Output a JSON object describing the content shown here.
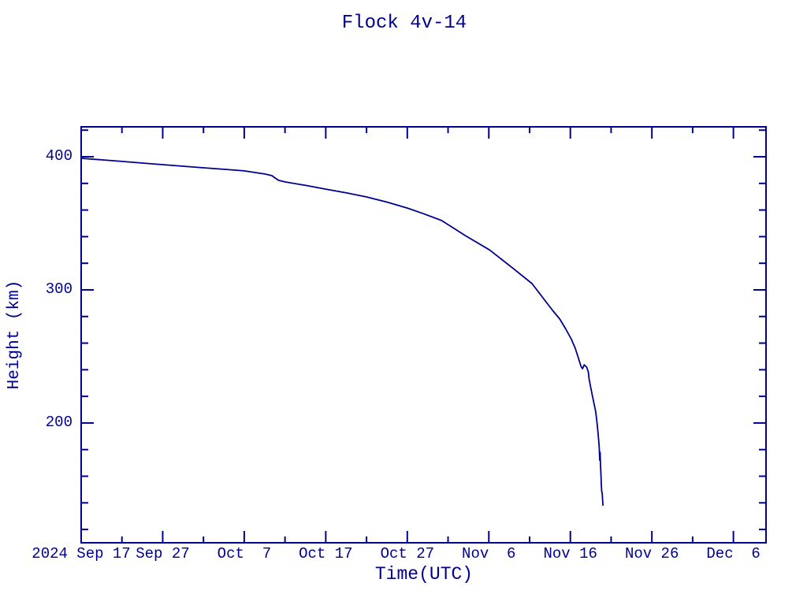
{
  "colors": {
    "accent": "#000090",
    "background": "#ffffff"
  },
  "chart_data": {
    "type": "line",
    "title": "Flock 4v-14",
    "xlabel": "Time(UTC)",
    "ylabel": "Height (km)",
    "x_unit": "days since 2024 Sep 17 (UTC)",
    "xlim": [
      0,
      84
    ],
    "ylim": [
      110,
      422.5
    ],
    "grid": false,
    "legend": "none",
    "line_color": "#000090",
    "x_major_ticks": [
      {
        "day": 0,
        "label": "2024 Sep 17"
      },
      {
        "day": 10,
        "label": "Sep 27"
      },
      {
        "day": 20,
        "label": "Oct  7"
      },
      {
        "day": 30,
        "label": "Oct 17"
      },
      {
        "day": 40,
        "label": "Oct 27"
      },
      {
        "day": 50,
        "label": "Nov  6"
      },
      {
        "day": 60,
        "label": "Nov 16"
      },
      {
        "day": 70,
        "label": "Nov 26"
      },
      {
        "day": 80,
        "label": "Dec  6"
      }
    ],
    "x_minor_ticks": [
      5,
      15,
      25,
      35,
      45,
      55,
      65,
      75
    ],
    "y_major_ticks": [
      {
        "km": 200,
        "label": "200"
      },
      {
        "km": 300,
        "label": "300"
      },
      {
        "km": 400,
        "label": "400"
      }
    ],
    "y_minor_ticks": [
      120,
      140,
      160,
      180,
      220,
      240,
      260,
      280,
      320,
      340,
      360,
      380,
      420
    ],
    "series": [
      {
        "name": "Flock 4v-14 orbital height",
        "points": [
          [
            0,
            398.8
          ],
          [
            2.5,
            397.7
          ],
          [
            5,
            396.5
          ],
          [
            7.5,
            395.3
          ],
          [
            10,
            394.1
          ],
          [
            12.5,
            392.9
          ],
          [
            15,
            391.7
          ],
          [
            17.5,
            390.6
          ],
          [
            20,
            389.4
          ],
          [
            22.6,
            387.0
          ],
          [
            23.4,
            385.8
          ],
          [
            23.8,
            384.0
          ],
          [
            24.2,
            382.3
          ],
          [
            25,
            381.1
          ],
          [
            27.5,
            378.5
          ],
          [
            30,
            375.7
          ],
          [
            32.5,
            372.9
          ],
          [
            35,
            369.8
          ],
          [
            37.5,
            366.0
          ],
          [
            40,
            361.5
          ],
          [
            42,
            357.2
          ],
          [
            44.2,
            352.1
          ],
          [
            47.1,
            340.8
          ],
          [
            50.1,
            330.0
          ],
          [
            52.9,
            316.5
          ],
          [
            55.3,
            304.7
          ],
          [
            57,
            291.1
          ],
          [
            57.9,
            284.0
          ],
          [
            58.7,
            278.1
          ],
          [
            59.4,
            271.0
          ],
          [
            60.1,
            263.3
          ],
          [
            60.6,
            256.2
          ],
          [
            61,
            248.5
          ],
          [
            61.3,
            242.6
          ],
          [
            61.5,
            240.8
          ],
          [
            61.7,
            243.7
          ],
          [
            62,
            242.0
          ],
          [
            62.2,
            238.4
          ],
          [
            62.3,
            233.1
          ],
          [
            62.5,
            226.6
          ],
          [
            62.7,
            220.7
          ],
          [
            62.9,
            214.7
          ],
          [
            63.1,
            208.8
          ],
          [
            63.2,
            204.1
          ],
          [
            63.3,
            198.2
          ],
          [
            63.4,
            192.2
          ],
          [
            63.5,
            185.2
          ],
          [
            63.55,
            181.0
          ],
          [
            63.6,
            172.0
          ],
          [
            63.65,
            178.0
          ],
          [
            63.7,
            168.0
          ],
          [
            63.75,
            162.0
          ],
          [
            63.8,
            154.0
          ],
          [
            63.85,
            148.5
          ],
          [
            63.9,
            147.5
          ],
          [
            64,
            137.8
          ]
        ]
      }
    ]
  }
}
